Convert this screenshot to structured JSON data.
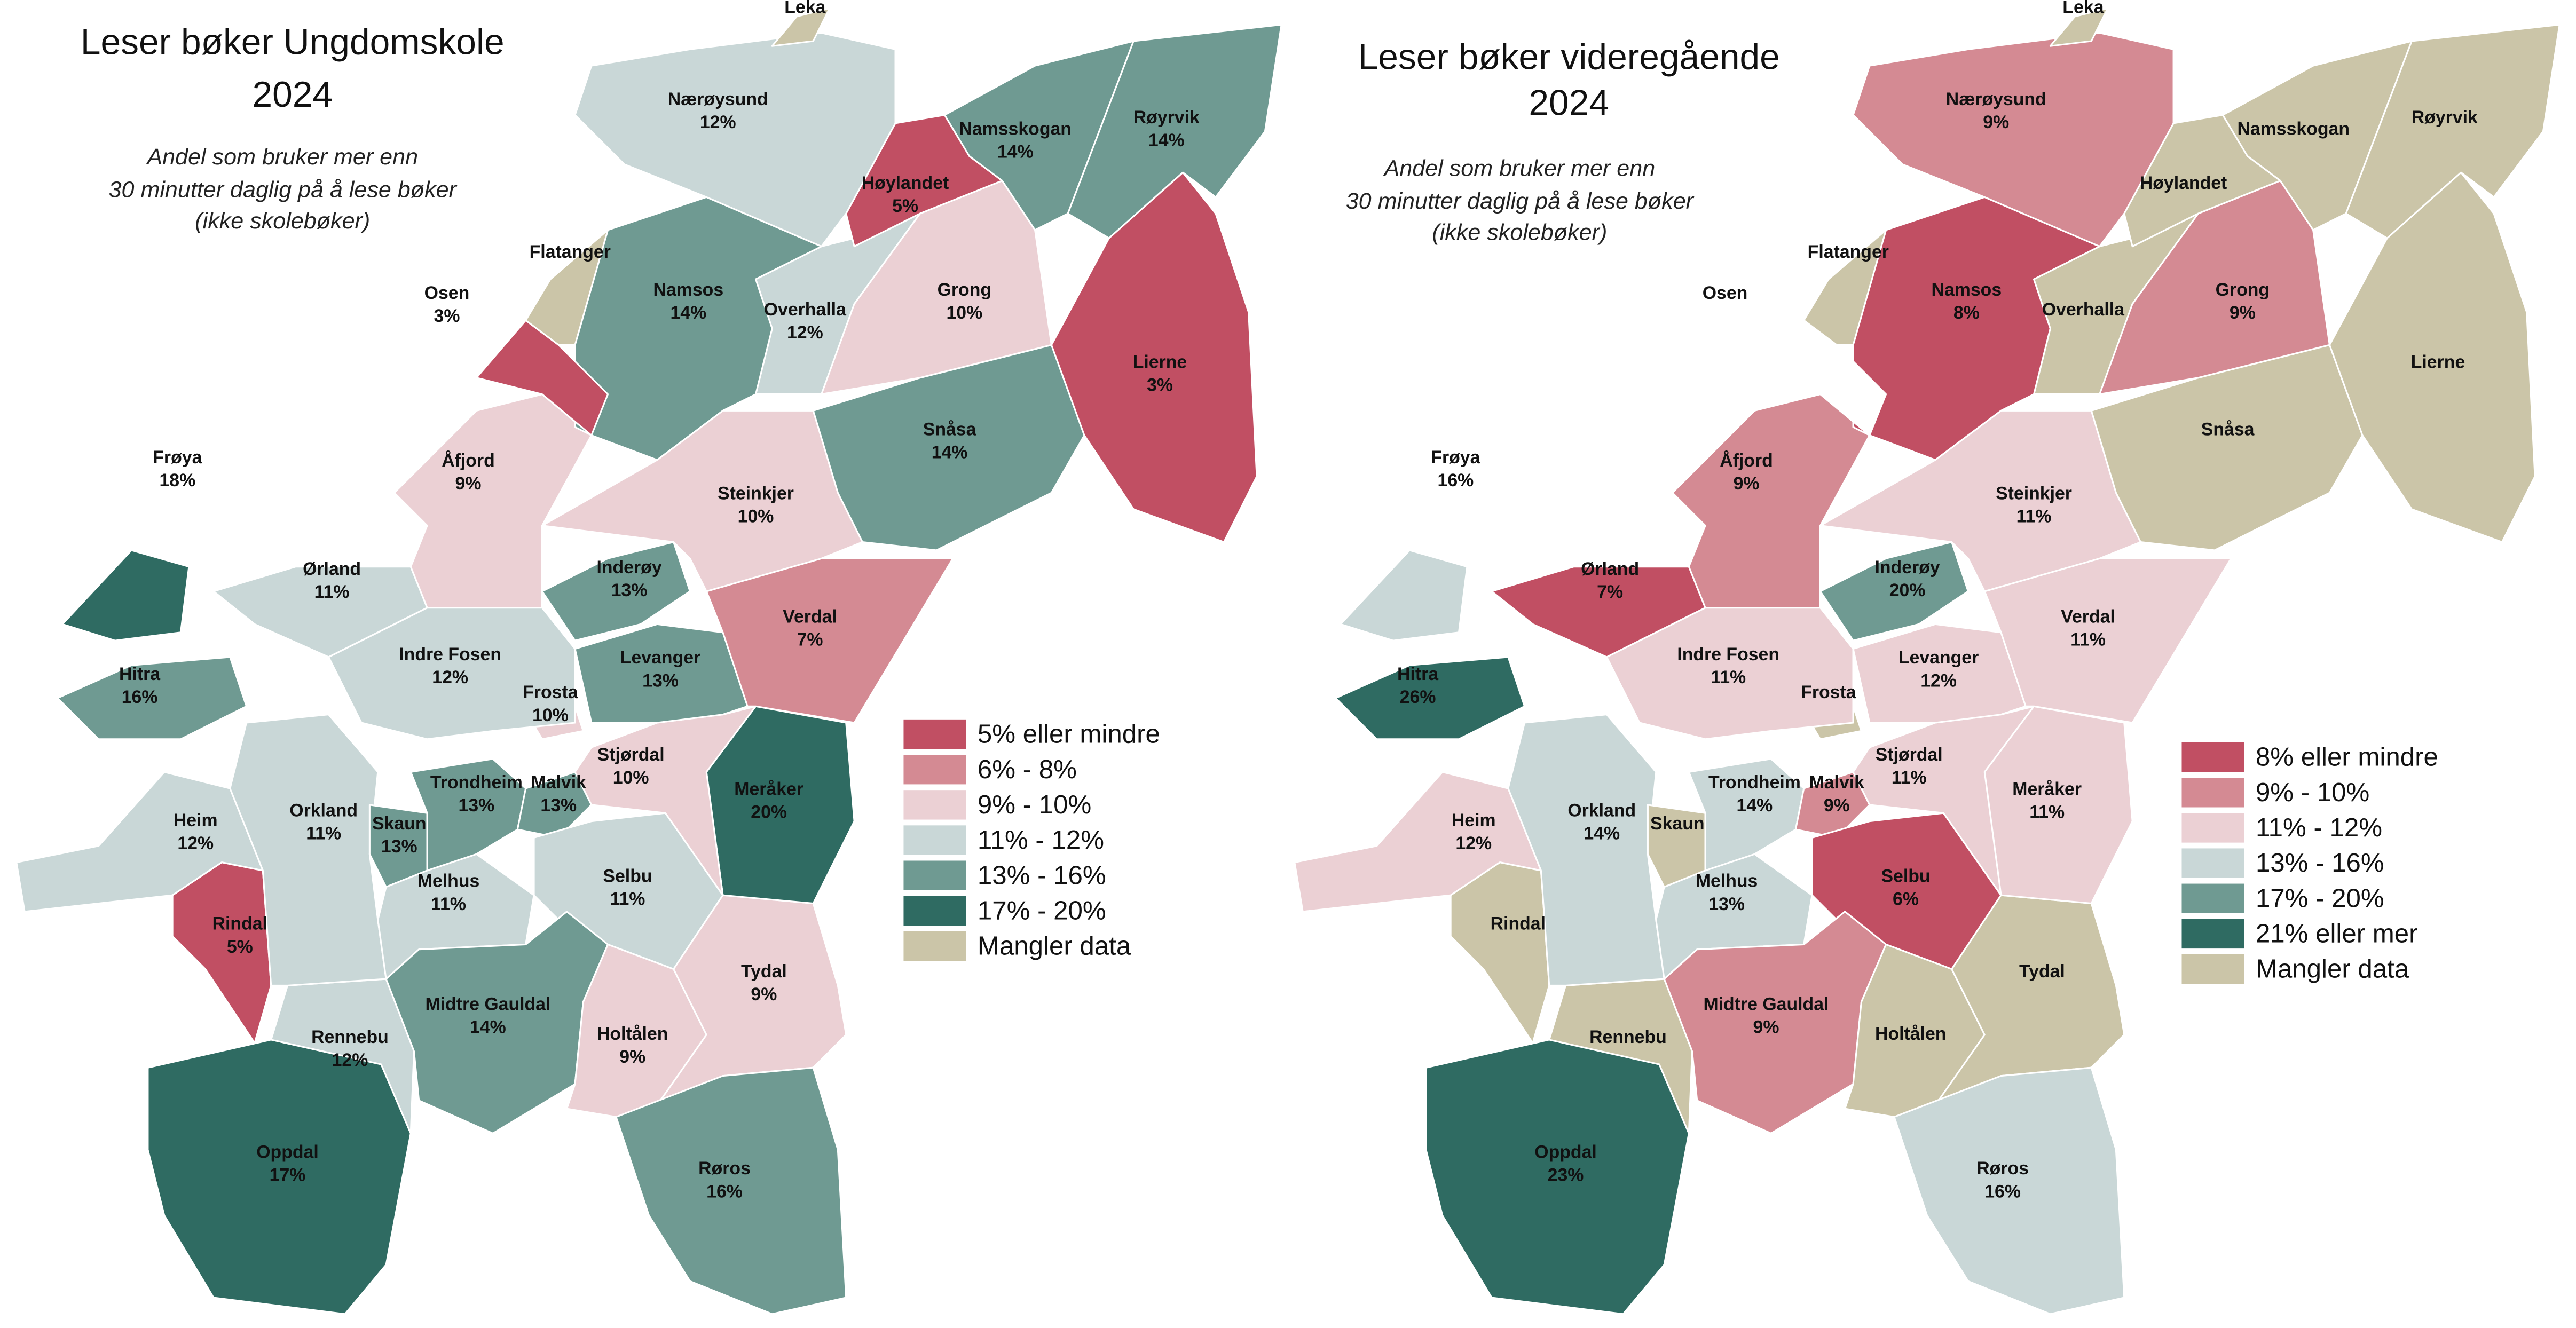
{
  "maps": [
    {
      "title": [
        "Leser bøker Ungdomskole",
        "2024"
      ],
      "subtitle": [
        "Andel som bruker mer enn",
        "30 minutter daglig på å lese bøker",
        "(ikke skolebøker)"
      ],
      "legend": [
        {
          "label": "5% eller mindre",
          "color": "#c14f63"
        },
        {
          "label": "6% - 8%",
          "color": "#d48a93"
        },
        {
          "label": "9% - 10%",
          "color": "#ebd0d4"
        },
        {
          "label": "11% - 12%",
          "color": "#c9d7d7"
        },
        {
          "label": "13% - 16%",
          "color": "#6f9a92"
        },
        {
          "label": "17% - 20%",
          "color": "#2f6b62"
        },
        {
          "label": "Mangler data",
          "color": "#cbc5a8"
        }
      ],
      "regions": [
        {
          "name": "Oppdal",
          "value": "17%",
          "color": "#2f6b62"
        },
        {
          "name": "Rennebu",
          "value": "12%",
          "color": "#c9d7d7"
        },
        {
          "name": "Rindal",
          "value": "5%",
          "color": "#c14f63"
        },
        {
          "name": "Heim",
          "value": "12%",
          "color": "#c9d7d7"
        },
        {
          "name": "Orkland",
          "value": "11%",
          "color": "#c9d7d7"
        },
        {
          "name": "Skaun",
          "value": "13%",
          "color": "#6f9a92"
        },
        {
          "name": "Melhus",
          "value": "11%",
          "color": "#c9d7d7"
        },
        {
          "name": "Trondheim",
          "value": "13%",
          "color": "#6f9a92"
        },
        {
          "name": "Malvik",
          "value": "13%",
          "color": "#6f9a92"
        },
        {
          "name": "Selbu",
          "value": "11%",
          "color": "#c9d7d7"
        },
        {
          "name": "Midtre Gauldal",
          "value": "14%",
          "color": "#6f9a92"
        },
        {
          "name": "Holtålen",
          "value": "9%",
          "color": "#ebd0d4"
        },
        {
          "name": "Tydal",
          "value": "9%",
          "color": "#ebd0d4"
        },
        {
          "name": "Meråker",
          "value": "20%",
          "color": "#2f6b62"
        },
        {
          "name": "Stjørdal",
          "value": "10%",
          "color": "#ebd0d4"
        },
        {
          "name": "Frosta",
          "value": "10%",
          "color": "#ebd0d4"
        },
        {
          "name": "Levanger",
          "value": "13%",
          "color": "#6f9a92"
        },
        {
          "name": "Inderøy",
          "value": "13%",
          "color": "#6f9a92"
        },
        {
          "name": "Verdal",
          "value": "7%",
          "color": "#d48a93"
        },
        {
          "name": "Steinkjer",
          "value": "10%",
          "color": "#ebd0d4"
        },
        {
          "name": "Indre Fosen",
          "value": "12%",
          "color": "#c9d7d7"
        },
        {
          "name": "Ørland",
          "value": "11%",
          "color": "#c9d7d7"
        },
        {
          "name": "Åfjord",
          "value": "9%",
          "color": "#ebd0d4"
        },
        {
          "name": "Snåsa",
          "value": "14%",
          "color": "#6f9a92"
        },
        {
          "name": "Lierne",
          "value": "3%",
          "color": "#c14f63"
        },
        {
          "name": "Grong",
          "value": "10%",
          "color": "#ebd0d4"
        },
        {
          "name": "Overhalla",
          "value": "12%",
          "color": "#c9d7d7"
        },
        {
          "name": "Namsos",
          "value": "14%",
          "color": "#6f9a92"
        },
        {
          "name": "Osen",
          "value": "3%",
          "color": "#c14f63"
        },
        {
          "name": "Flatanger",
          "color": "#cbc5a8"
        },
        {
          "name": "Høylandet",
          "value": "5%",
          "color": "#c14f63"
        },
        {
          "name": "Namsskogan",
          "value": "14%",
          "color": "#6f9a92"
        },
        {
          "name": "Røyrvik",
          "value": "14%",
          "color": "#6f9a92"
        },
        {
          "name": "Nærøysund",
          "value": "12%",
          "color": "#c9d7d7"
        },
        {
          "name": "Leka",
          "color": "#cbc5a8"
        },
        {
          "name": "Frøya",
          "value": "18%",
          "color": "#2f6b62"
        },
        {
          "name": "Hitra",
          "value": "16%",
          "color": "#6f9a92"
        },
        {
          "name": "Røros",
          "value": "16%",
          "color": "#6f9a92"
        }
      ]
    },
    {
      "title": [
        "Leser bøker videregående",
        "2024"
      ],
      "subtitle": [
        "Andel som bruker mer enn",
        "30 minutter daglig på å lese bøker",
        "(ikke skolebøker)"
      ],
      "legend": [
        {
          "label": "8% eller mindre",
          "color": "#c14f63"
        },
        {
          "label": "9% - 10%",
          "color": "#d48a93"
        },
        {
          "label": "11% - 12%",
          "color": "#ebd0d4"
        },
        {
          "label": "13% - 16%",
          "color": "#c9d7d7"
        },
        {
          "label": "17% - 20%",
          "color": "#6f9a92"
        },
        {
          "label": "21% eller mer",
          "color": "#2f6b62"
        },
        {
          "label": "Mangler data",
          "color": "#cbc5a8"
        }
      ],
      "regions": [
        {
          "name": "Oppdal",
          "value": "23%",
          "color": "#2f6b62"
        },
        {
          "name": "Rennebu",
          "color": "#cbc5a8"
        },
        {
          "name": "Rindal",
          "color": "#cbc5a8"
        },
        {
          "name": "Heim",
          "value": "12%",
          "color": "#ebd0d4"
        },
        {
          "name": "Orkland",
          "value": "14%",
          "color": "#c9d7d7"
        },
        {
          "name": "Skaun",
          "color": "#cbc5a8"
        },
        {
          "name": "Melhus",
          "value": "13%",
          "color": "#c9d7d7"
        },
        {
          "name": "Trondheim",
          "value": "14%",
          "color": "#c9d7d7"
        },
        {
          "name": "Malvik",
          "value": "9%",
          "color": "#d48a93"
        },
        {
          "name": "Selbu",
          "value": "6%",
          "color": "#c14f63"
        },
        {
          "name": "Midtre Gauldal",
          "value": "9%",
          "color": "#d48a93"
        },
        {
          "name": "Holtålen",
          "color": "#cbc5a8"
        },
        {
          "name": "Tydal",
          "color": "#cbc5a8"
        },
        {
          "name": "Meråker",
          "value": "11%",
          "color": "#ebd0d4"
        },
        {
          "name": "Stjørdal",
          "value": "11%",
          "color": "#ebd0d4"
        },
        {
          "name": "Frosta",
          "color": "#cbc5a8"
        },
        {
          "name": "Levanger",
          "value": "12%",
          "color": "#ebd0d4"
        },
        {
          "name": "Inderøy",
          "value": "20%",
          "color": "#6f9a92"
        },
        {
          "name": "Verdal",
          "value": "11%",
          "color": "#ebd0d4"
        },
        {
          "name": "Steinkjer",
          "value": "11%",
          "color": "#ebd0d4"
        },
        {
          "name": "Indre Fosen",
          "value": "11%",
          "color": "#ebd0d4"
        },
        {
          "name": "Ørland",
          "value": "7%",
          "color": "#c14f63"
        },
        {
          "name": "Åfjord",
          "value": "9%",
          "color": "#d48a93"
        },
        {
          "name": "Snåsa",
          "color": "#cbc5a8"
        },
        {
          "name": "Lierne",
          "color": "#cbc5a8"
        },
        {
          "name": "Grong",
          "value": "9%",
          "color": "#d48a93"
        },
        {
          "name": "Overhalla",
          "color": "#cbc5a8"
        },
        {
          "name": "Namsos",
          "value": "8%",
          "color": "#c14f63"
        },
        {
          "name": "Osen",
          "color": "#ffffff"
        },
        {
          "name": "Flatanger",
          "color": "#cbc5a8"
        },
        {
          "name": "Høylandet",
          "color": "#cbc5a8"
        },
        {
          "name": "Namsskogan",
          "color": "#cbc5a8"
        },
        {
          "name": "Røyrvik",
          "color": "#cbc5a8"
        },
        {
          "name": "Nærøysund",
          "value": "9%",
          "color": "#d48a93"
        },
        {
          "name": "Leka",
          "color": "#cbc5a8"
        },
        {
          "name": "Frøya",
          "value": "16%",
          "color": "#c9d7d7"
        },
        {
          "name": "Hitra",
          "value": "26%",
          "color": "#2f6b62"
        },
        {
          "name": "Røros",
          "value": "16%",
          "color": "#c9d7d7"
        }
      ]
    }
  ]
}
